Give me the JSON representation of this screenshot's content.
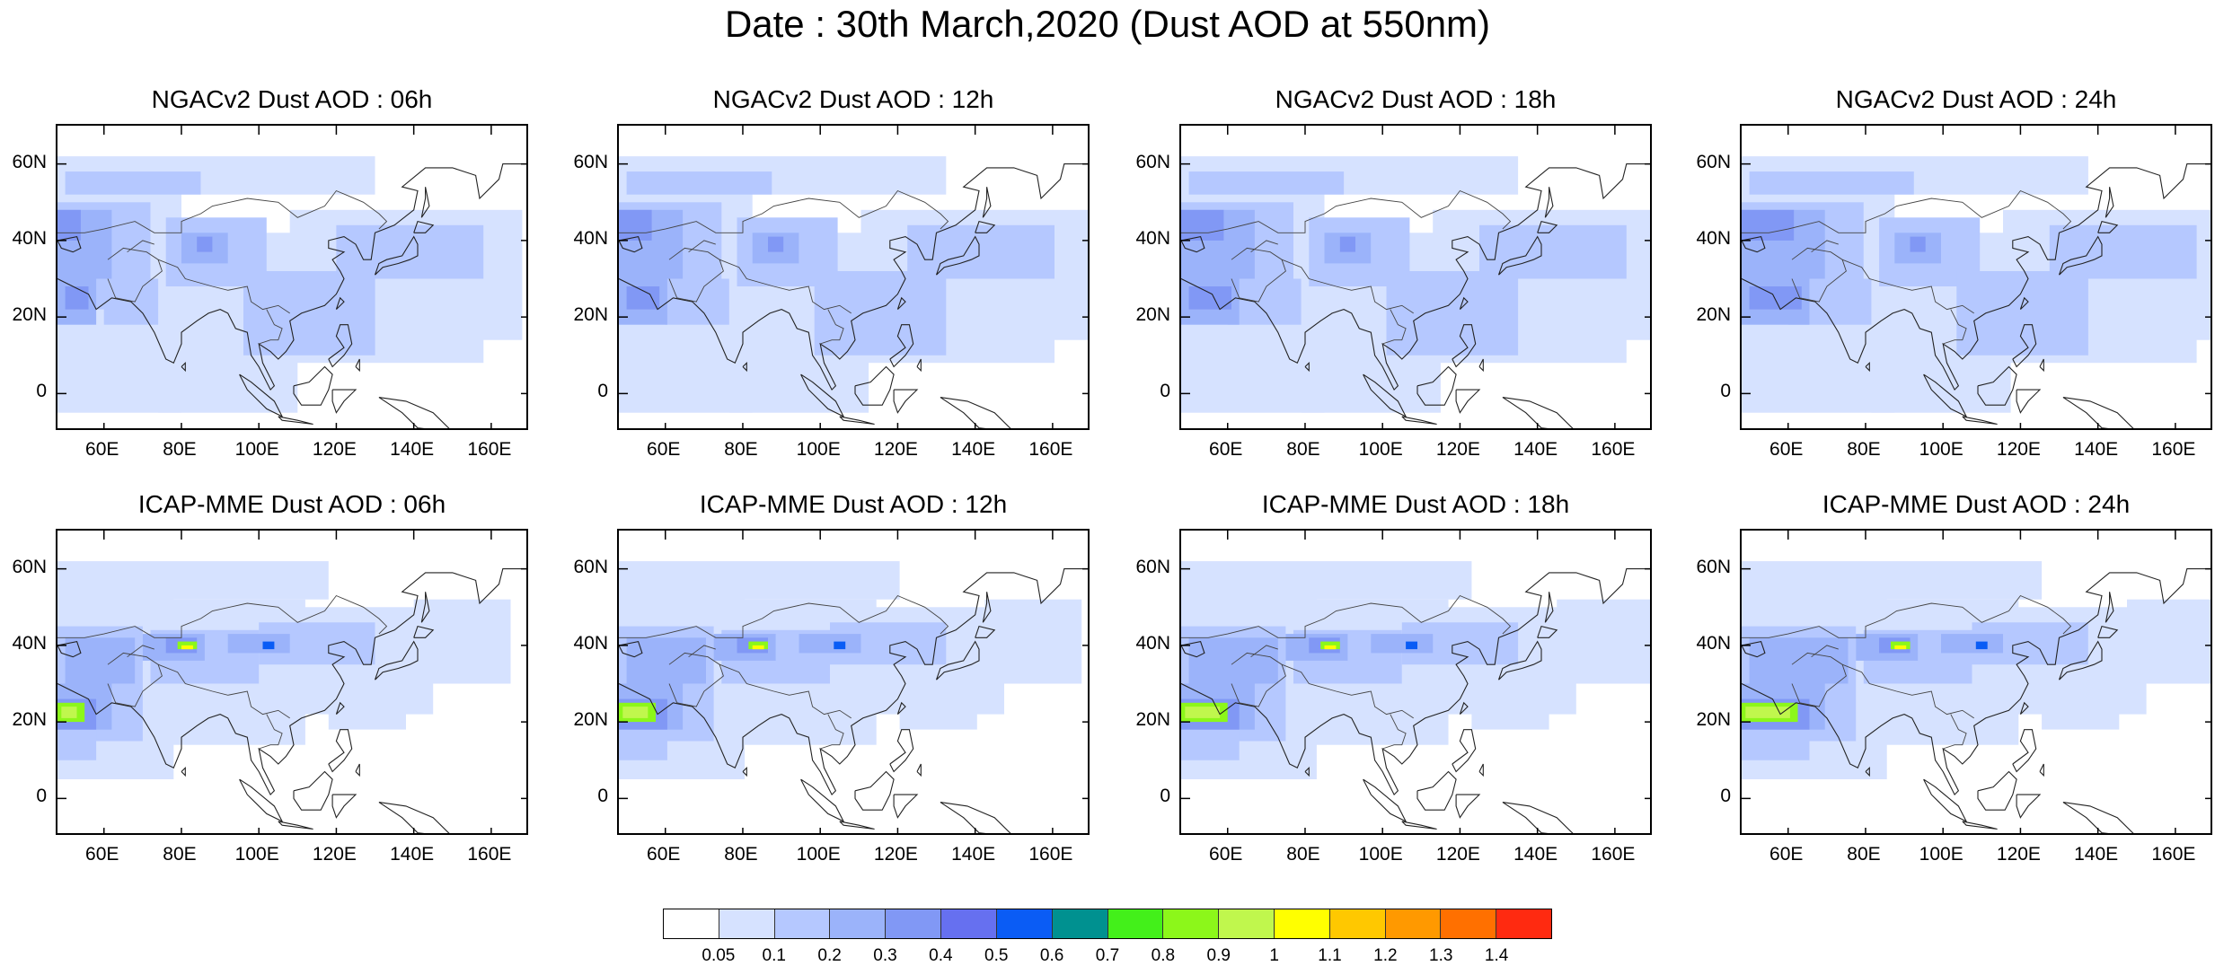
{
  "page": {
    "title": "Date : 30th March,2020 (Dust AOD at 550nm)"
  },
  "map_axes": {
    "lat_ticks": [
      "60N",
      "40N",
      "20N",
      "0"
    ],
    "lat_tick_values": [
      60,
      40,
      20,
      0
    ],
    "lon_ticks": [
      "60E",
      "80E",
      "100E",
      "120E",
      "140E",
      "160E"
    ],
    "lon_tick_values": [
      60,
      80,
      100,
      120,
      140,
      160
    ],
    "lon_range": [
      48,
      170
    ],
    "lat_range": [
      -10,
      70
    ]
  },
  "panels": [
    {
      "title": "NGACv2 Dust AOD : 06h",
      "model": "NGACv2",
      "hour": 6
    },
    {
      "title": "NGACv2 Dust AOD : 12h",
      "model": "NGACv2",
      "hour": 12
    },
    {
      "title": "NGACv2 Dust AOD : 18h",
      "model": "NGACv2",
      "hour": 18
    },
    {
      "title": "NGACv2 Dust AOD : 24h",
      "model": "NGACv2",
      "hour": 24
    },
    {
      "title": "ICAP-MME Dust AOD : 06h",
      "model": "ICAP-MME",
      "hour": 6
    },
    {
      "title": "ICAP-MME Dust AOD : 12h",
      "model": "ICAP-MME",
      "hour": 12
    },
    {
      "title": "ICAP-MME Dust AOD : 18h",
      "model": "ICAP-MME",
      "hour": 18
    },
    {
      "title": "ICAP-MME Dust AOD : 24h",
      "model": "ICAP-MME",
      "hour": 24
    }
  ],
  "colorbar": {
    "labels": [
      "0.05",
      "0.1",
      "0.2",
      "0.3",
      "0.4",
      "0.5",
      "0.6",
      "0.7",
      "0.8",
      "0.9",
      "1",
      "1.1",
      "1.2",
      "1.3",
      "1.4"
    ],
    "colors": [
      "#ffffff",
      "#d6e2ff",
      "#b5c8ff",
      "#9bb3fa",
      "#8198f5",
      "#6670f0",
      "#0a5cf5",
      "#009190",
      "#43f01a",
      "#8cf71a",
      "#c0f74d",
      "#ffff00",
      "#ffc800",
      "#ff9900",
      "#ff7000",
      "#ff2a10"
    ]
  }
}
